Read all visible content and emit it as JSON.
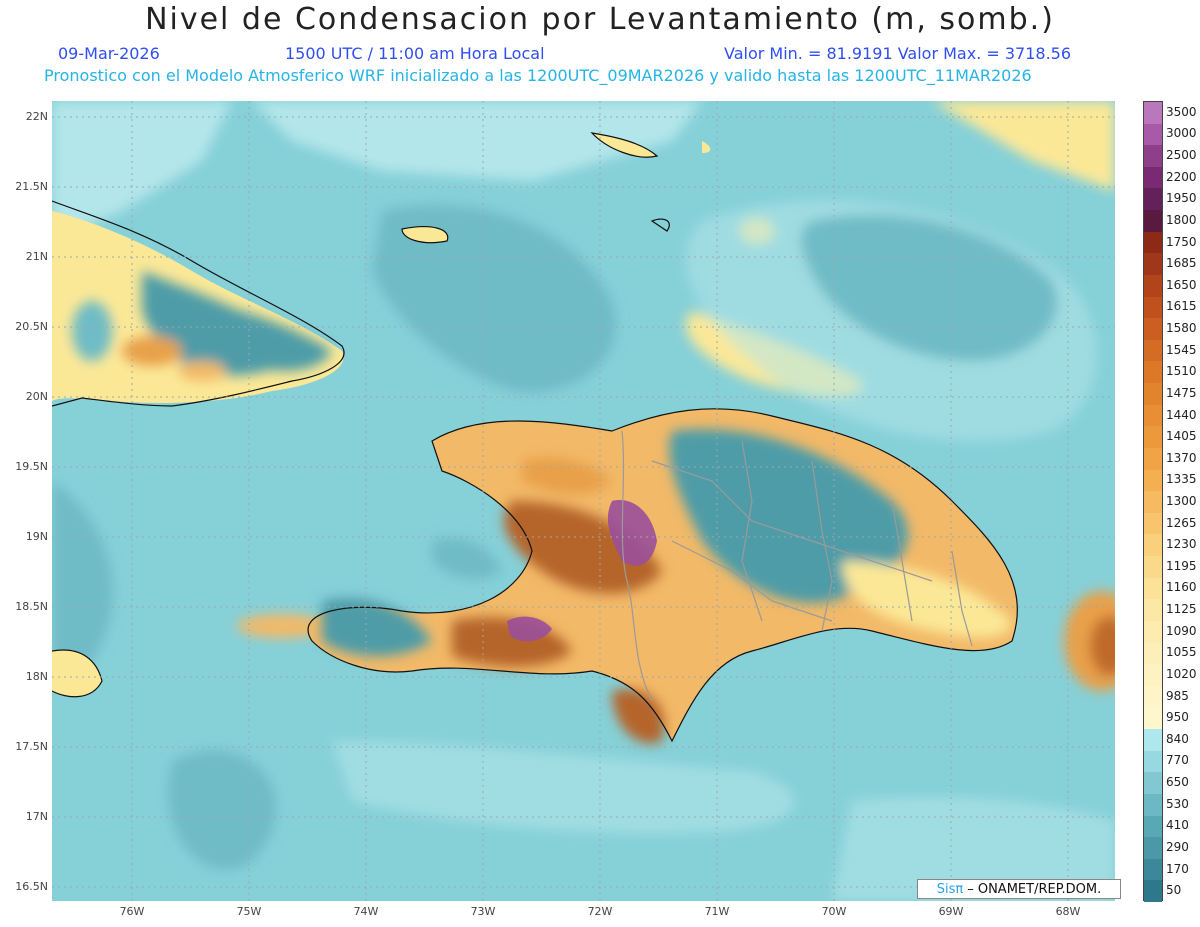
{
  "header": {
    "title": "Nivel de Condensacion por Levantamiento (m, somb.)",
    "date": "09-Mar-2026",
    "time": "1500 UTC / 11:00 am Hora Local",
    "min_max": "Valor Min. = 81.9191  Valor Max. = 3718.56",
    "model_info": "Pronostico con el Modelo Atmosferico WRF inicializado a las 1200UTC_09MAR2026 y valido hasta las  1200UTC_11MAR2026"
  },
  "map": {
    "lat_labels": [
      "22N",
      "21.5N",
      "21N",
      "20.5N",
      "20N",
      "19.5N",
      "19N",
      "18.5N",
      "18N",
      "17.5N",
      "17N",
      "16.5N"
    ],
    "lon_labels": [
      "76W",
      "75W",
      "74W",
      "73W",
      "72W",
      "71W",
      "70W",
      "69W",
      "68W"
    ],
    "colors": {
      "ocean": "#86d0d8",
      "ocean_deep": "#5fb2bd",
      "ocean_light": "#b3e6ea",
      "sand": "#fbe897",
      "land_teal": "#4d9ca8",
      "orange": "#e8a04a",
      "brown": "#b5652a",
      "purple": "#9a4f9a"
    }
  },
  "colorbar": {
    "levels": [
      "3500",
      "3000",
      "2500",
      "2200",
      "1950",
      "1800",
      "1750",
      "1685",
      "1650",
      "1615",
      "1580",
      "1545",
      "1510",
      "1475",
      "1440",
      "1405",
      "1370",
      "1335",
      "1300",
      "1265",
      "1230",
      "1195",
      "1160",
      "1125",
      "1090",
      "1055",
      "1020",
      "985",
      "950",
      "840",
      "770",
      "650",
      "530",
      "410",
      "290",
      "170",
      "50"
    ],
    "colors": [
      "#bb77bb",
      "#a85aa8",
      "#8f3f8a",
      "#7a2a72",
      "#64205a",
      "#5a1a40",
      "#8c2a16",
      "#a0361a",
      "#b2441c",
      "#c0501e",
      "#cb5e20",
      "#d56c24",
      "#dc7828",
      "#e2842e",
      "#e88e34",
      "#ec993c",
      "#f0a446",
      "#f3af52",
      "#f6ba60",
      "#f8c56e",
      "#fad07c",
      "#fbd98a",
      "#fce198",
      "#fde7a4",
      "#fdebb0",
      "#fdefba",
      "#fdf2c2",
      "#fdf4c8",
      "#fef6cc",
      "#aee8ee",
      "#98d8e0",
      "#82c8d2",
      "#6cb8c4",
      "#58a8b6",
      "#4a98a8",
      "#3c889a",
      "#2e788c"
    ]
  },
  "credit": {
    "sis": "Sisπ",
    "org": "– ONAMET/REP.DOM."
  }
}
